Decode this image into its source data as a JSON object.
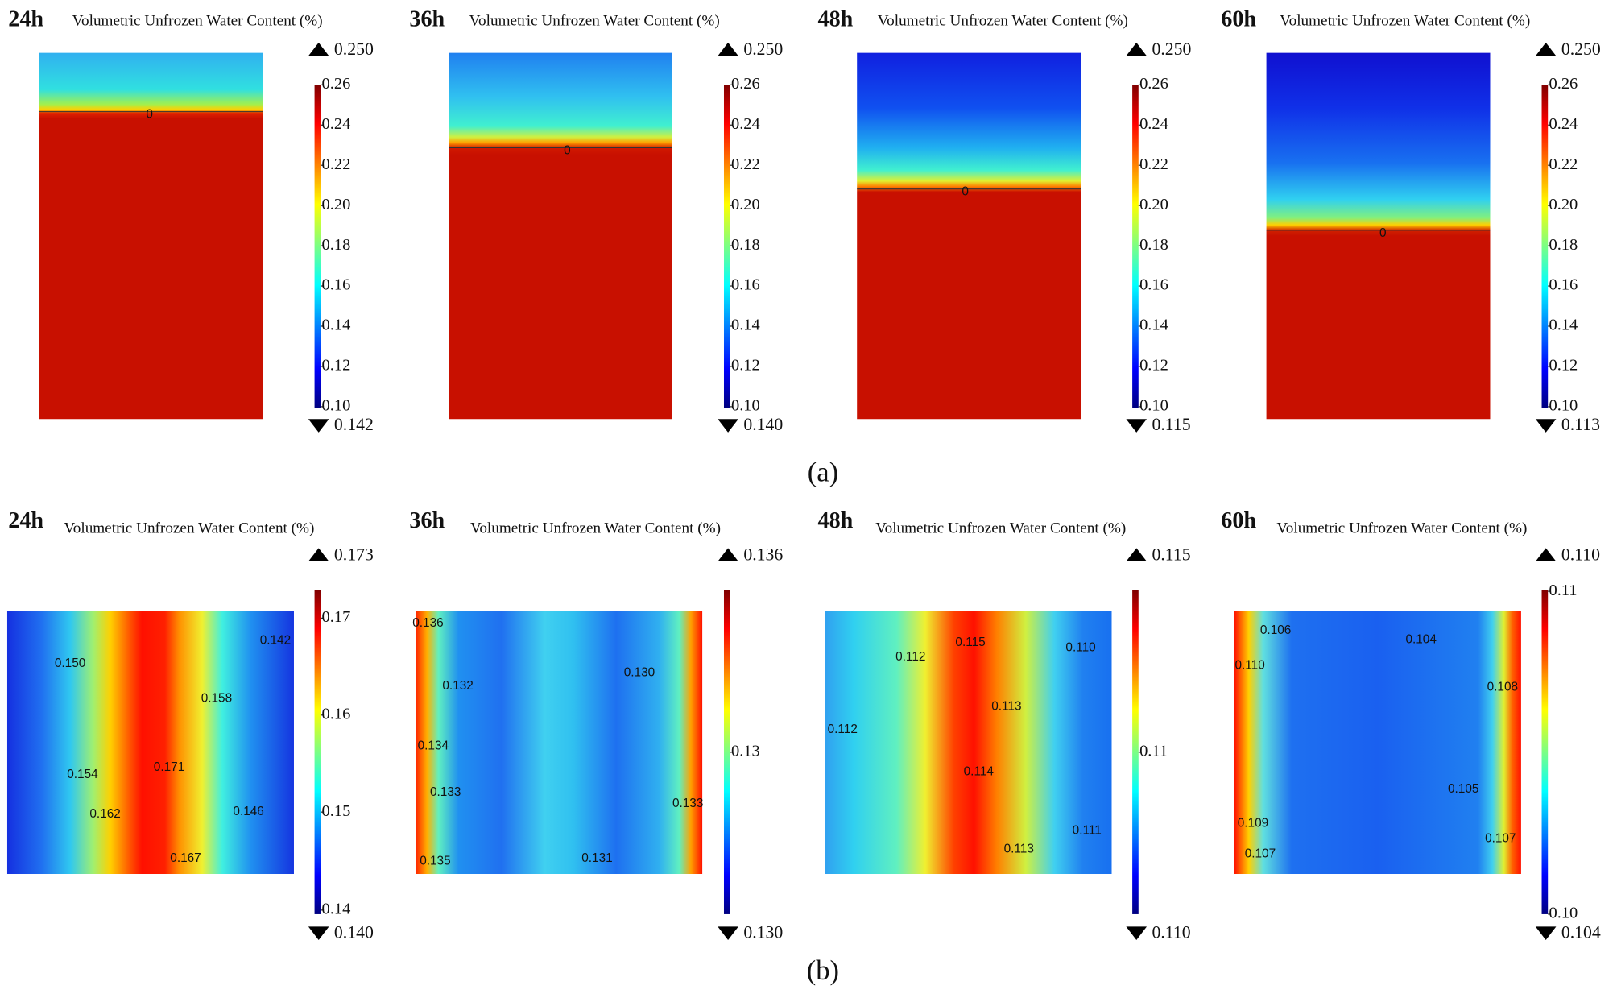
{
  "rows": [
    {
      "caption": "(a)",
      "panels": [
        {
          "time": "24h",
          "title": "Volumetric Unfrozen Water Content (%)",
          "max": "0.250",
          "min": "0.142",
          "ticks": [
            "0.26",
            "0.24",
            "0.22",
            "0.20",
            "0.18",
            "0.16",
            "0.14",
            "0.12",
            "0.10"
          ],
          "contours": [
            "0"
          ]
        },
        {
          "time": "36h",
          "title": "Volumetric Unfrozen Water Content (%)",
          "max": "0.250",
          "min": "0.140",
          "ticks": [
            "0.26",
            "0.24",
            "0.22",
            "0.20",
            "0.18",
            "0.16",
            "0.14",
            "0.12",
            "0.10"
          ],
          "contours": [
            "0"
          ]
        },
        {
          "time": "48h",
          "title": "Volumetric Unfrozen Water Content (%)",
          "max": "0.250",
          "min": "0.115",
          "ticks": [
            "0.26",
            "0.24",
            "0.22",
            "0.20",
            "0.18",
            "0.16",
            "0.14",
            "0.12",
            "0.10"
          ],
          "contours": [
            "0"
          ]
        },
        {
          "time": "60h",
          "title": "Volumetric Unfrozen Water Content (%)",
          "max": "0.250",
          "min": "0.113",
          "ticks": [
            "0.26",
            "0.24",
            "0.22",
            "0.20",
            "0.18",
            "0.16",
            "0.14",
            "0.12",
            "0.10"
          ],
          "contours": [
            "0"
          ]
        }
      ]
    },
    {
      "caption": "(b)",
      "panels": [
        {
          "time": "24h",
          "title": "Volumetric Unfrozen Water Content (%)",
          "max": "0.173",
          "min": "0.140",
          "ticks": [
            "0.17",
            "0.16",
            "0.15",
            "0.14"
          ],
          "contours": [
            "0.150",
            "0.142",
            "0.158",
            "0.154",
            "0.171",
            "0.162",
            "0.146",
            "0.167"
          ]
        },
        {
          "time": "36h",
          "title": "Volumetric Unfrozen Water Content (%)",
          "max": "0.136",
          "min": "0.130",
          "ticks": [
            "0.13"
          ],
          "contours": [
            "0.136",
            "0.132",
            "0.130",
            "0.134",
            "0.133",
            "0.133",
            "0.135",
            "0.131"
          ]
        },
        {
          "time": "48h",
          "title": "Volumetric Unfrozen Water Content (%)",
          "max": "0.115",
          "min": "0.110",
          "ticks": [
            "0.11"
          ],
          "contours": [
            "0.115",
            "0.112",
            "0.110",
            "0.113",
            "0.112",
            "0.114",
            "0.111",
            "0.113"
          ]
        },
        {
          "time": "60h",
          "title": "Volumetric Unfrozen Water Content (%)",
          "max": "0.110",
          "min": "0.104",
          "ticks": [
            "0.11",
            "0.10"
          ],
          "contours": [
            "0.106",
            "0.104",
            "0.110",
            "0.108",
            "0.105",
            "0.109",
            "0.107",
            "0.107"
          ]
        }
      ]
    }
  ]
}
